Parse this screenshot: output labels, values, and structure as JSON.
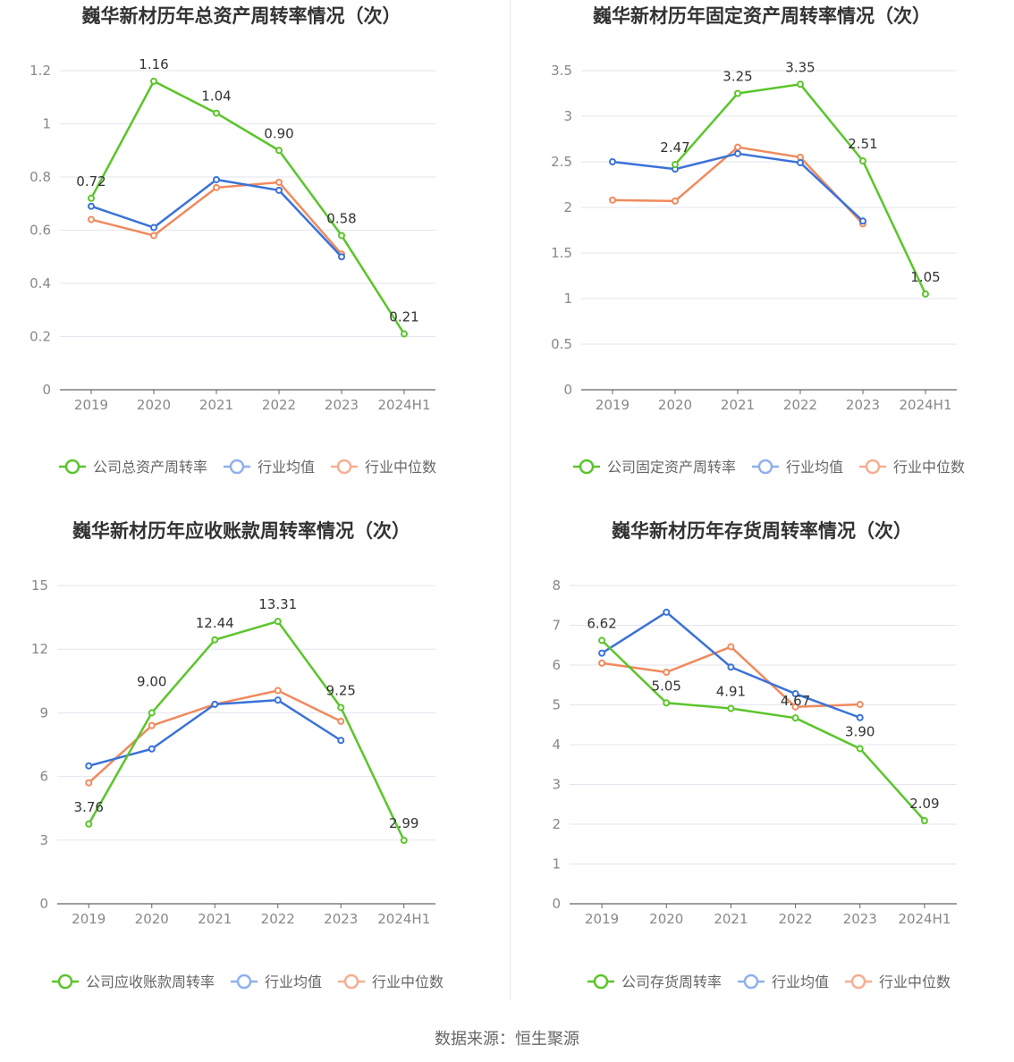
{
  "source": "数据来源：恒生聚源",
  "colors": {
    "company": "#5bc52b",
    "avg": "#3a72d8",
    "median": "#f08a5d",
    "legend_avg": "#8fb0ee",
    "legend_median": "#f6ae90"
  },
  "chart_data": [
    {
      "type": "line",
      "title": "巍华新材历年总资产周转率情况（次）",
      "categories": [
        "2019",
        "2020",
        "2021",
        "2022",
        "2023",
        "2024H1"
      ],
      "ylim": [
        0,
        1.2
      ],
      "yticks": [
        0,
        0.2,
        0.4,
        0.6,
        0.8,
        1,
        1.2
      ],
      "ytick_labels": [
        "0",
        "0.2",
        "0.4",
        "0.6",
        "0.8",
        "1",
        "1.2"
      ],
      "series": [
        {
          "name": "公司总资产周转率",
          "values": [
            0.72,
            1.16,
            1.04,
            0.9,
            0.58,
            0.21
          ],
          "labels": [
            "0.72",
            "1.16",
            "1.04",
            "0.90",
            "0.58",
            "0.21"
          ]
        },
        {
          "name": "行业均值",
          "values": [
            0.69,
            0.61,
            0.79,
            0.75,
            0.5,
            null
          ]
        },
        {
          "name": "行业中位数",
          "values": [
            0.64,
            0.58,
            0.76,
            0.78,
            0.51,
            null
          ]
        }
      ]
    },
    {
      "type": "line",
      "title": "巍华新材历年固定资产周转率情况（次）",
      "categories": [
        "2019",
        "2020",
        "2021",
        "2022",
        "2023",
        "2024H1"
      ],
      "ylim": [
        0,
        3.5
      ],
      "yticks": [
        0,
        0.5,
        1,
        1.5,
        2,
        2.5,
        3,
        3.5
      ],
      "ytick_labels": [
        "0",
        "0.5",
        "1",
        "1.5",
        "2",
        "2.5",
        "3",
        "3.5"
      ],
      "series": [
        {
          "name": "公司固定资产周转率",
          "values": [
            null,
            2.47,
            3.25,
            3.35,
            2.51,
            1.05
          ],
          "labels": [
            null,
            "2.47",
            "3.25",
            "3.35",
            "2.51",
            "1.05"
          ]
        },
        {
          "name": "行业均值",
          "values": [
            2.5,
            2.42,
            2.59,
            2.49,
            1.85,
            null
          ]
        },
        {
          "name": "行业中位数",
          "values": [
            2.08,
            2.07,
            2.66,
            2.55,
            1.82,
            null
          ]
        }
      ]
    },
    {
      "type": "line",
      "title": "巍华新材历年应收账款周转率情况（次）",
      "categories": [
        "2019",
        "2020",
        "2021",
        "2022",
        "2023",
        "2024H1"
      ],
      "ylim": [
        0,
        15
      ],
      "yticks": [
        0,
        3,
        6,
        9,
        12,
        15
      ],
      "ytick_labels": [
        "0",
        "3",
        "6",
        "9",
        "12",
        "15"
      ],
      "series": [
        {
          "name": "公司应收账款周转率",
          "values": [
            3.76,
            9.0,
            12.44,
            13.31,
            9.25,
            2.99
          ],
          "labels": [
            "3.76",
            "9.00",
            "12.44",
            "13.31",
            "9.25",
            "2.99"
          ]
        },
        {
          "name": "行业均值",
          "values": [
            6.5,
            7.3,
            9.4,
            9.6,
            7.7,
            null
          ]
        },
        {
          "name": "行业中位数",
          "values": [
            5.7,
            8.4,
            9.4,
            10.05,
            8.6,
            null
          ]
        }
      ]
    },
    {
      "type": "line",
      "title": "巍华新材历年存货周转率情况（次）",
      "categories": [
        "2019",
        "2020",
        "2021",
        "2022",
        "2023",
        "2024H1"
      ],
      "ylim": [
        0,
        8
      ],
      "yticks": [
        0,
        1,
        2,
        3,
        4,
        5,
        6,
        7,
        8
      ],
      "ytick_labels": [
        "0",
        "1",
        "2",
        "3",
        "4",
        "5",
        "6",
        "7",
        "8"
      ],
      "series": [
        {
          "name": "公司存货周转率",
          "values": [
            6.62,
            5.05,
            4.91,
            4.67,
            3.9,
            2.09
          ],
          "labels": [
            "6.62",
            "5.05",
            "4.91",
            "4.67",
            "3.90",
            "2.09"
          ]
        },
        {
          "name": "行业均值",
          "values": [
            6.3,
            7.33,
            5.95,
            5.28,
            4.68,
            null
          ]
        },
        {
          "name": "行业中位数",
          "values": [
            6.05,
            5.82,
            6.46,
            4.95,
            5.01,
            null
          ]
        }
      ]
    }
  ]
}
